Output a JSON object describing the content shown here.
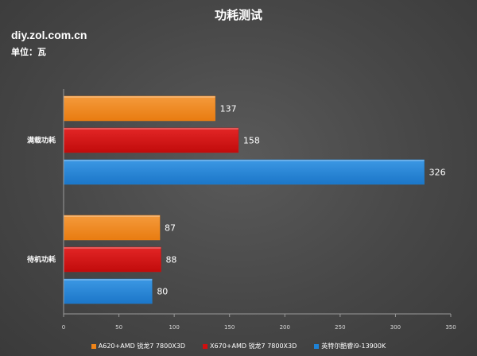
{
  "watermark": "diy.zol.com.cn",
  "unit": "单位：瓦",
  "colors": {
    "series": [
      "#f08418",
      "#cf0f0f",
      "#1e82d6"
    ]
  },
  "chart_data": {
    "type": "bar",
    "orientation": "horizontal",
    "title": "功耗测试",
    "categories": [
      "满载功耗",
      "待机功耗"
    ],
    "series": [
      {
        "name": "A620+AMD 锐龙7 7800X3D",
        "values": [
          137,
          87
        ]
      },
      {
        "name": "X670+AMD 锐龙7 7800X3D",
        "values": [
          158,
          88
        ]
      },
      {
        "name": "英特尔酷睿i9-13900K",
        "values": [
          326,
          80
        ]
      }
    ],
    "xlim": [
      0,
      350
    ],
    "xticks": [
      "0",
      "50",
      "100",
      "150",
      "200",
      "250",
      "300",
      "350"
    ],
    "xlabel": "",
    "ylabel": "",
    "grid": false,
    "legend_position": "bottom"
  }
}
